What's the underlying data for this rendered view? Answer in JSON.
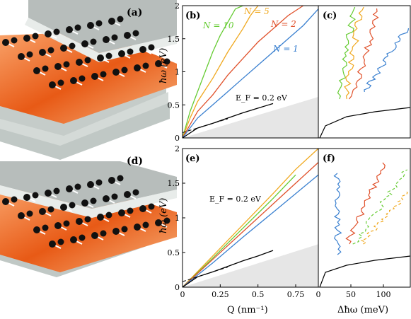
{
  "figure": {
    "panel_labels": [
      "(a)",
      "(b)",
      "(c)",
      "(d)",
      "(e)",
      "(f)"
    ],
    "y_axis_label": "ħω (eV)",
    "x_axis_label_left": "Q (nm⁻¹)",
    "x_axis_label_right": "Δħω (meV)",
    "ef_label_top": "E_F = 0.2 eV",
    "ef_label_bottom": "E_F = 0.2 eV",
    "n_labels": [
      "N = 10",
      "N = 5",
      "N = 2",
      "N = 1"
    ],
    "colors": {
      "N10": "#66cc33",
      "N5": "#f0a81e",
      "N2": "#e0502a",
      "N1": "#3a80d0",
      "graphene": "#000000",
      "light_cone": "#e6e6e6"
    }
  },
  "chart_data": [
    {
      "panel": "(b)",
      "type": "line",
      "xlim": [
        0,
        0.9
      ],
      "ylim": [
        0,
        2
      ],
      "yticks": [
        "0",
        "0.5",
        "1",
        "1.5",
        "2"
      ],
      "series": [
        {
          "name": "N = 10",
          "color": "#66cc33",
          "x": [
            0,
            0.05,
            0.1,
            0.15,
            0.2,
            0.25,
            0.3,
            0.35,
            0.4
          ],
          "y": [
            0,
            0.4,
            0.7,
            1.0,
            1.3,
            1.55,
            1.75,
            1.95,
            2.0
          ]
        },
        {
          "name": "N = 5",
          "color": "#f0a81e",
          "x": [
            0,
            0.05,
            0.1,
            0.2,
            0.3,
            0.4,
            0.45,
            0.5
          ],
          "y": [
            0,
            0.3,
            0.55,
            0.9,
            1.3,
            1.65,
            1.85,
            2.0
          ]
        },
        {
          "name": "N = 2",
          "color": "#e0502a",
          "x": [
            0,
            0.1,
            0.2,
            0.3,
            0.4,
            0.5,
            0.6,
            0.7,
            0.8
          ],
          "y": [
            0,
            0.4,
            0.65,
            0.95,
            1.2,
            1.45,
            1.65,
            1.85,
            2.0
          ]
        },
        {
          "name": "N = 1",
          "color": "#3a80d0",
          "x": [
            0,
            0.1,
            0.2,
            0.3,
            0.4,
            0.5,
            0.6,
            0.7,
            0.8,
            0.9
          ],
          "y": [
            0,
            0.3,
            0.5,
            0.7,
            0.9,
            1.1,
            1.3,
            1.5,
            1.7,
            1.95
          ]
        },
        {
          "name": "graphene",
          "color": "#000000",
          "x": [
            0,
            0.1,
            0.2,
            0.3,
            0.4,
            0.5,
            0.6
          ],
          "y": [
            0,
            0.15,
            0.22,
            0.3,
            0.38,
            0.45,
            0.52
          ]
        }
      ]
    },
    {
      "panel": "(c)",
      "type": "line",
      "ylim": [
        0,
        2
      ]
    },
    {
      "panel": "(e)",
      "type": "line",
      "xlim": [
        0,
        0.9
      ],
      "ylim": [
        0,
        2
      ],
      "xticks": [
        "0",
        "0.25",
        "0.5",
        "0.75"
      ],
      "yticks": [
        "0",
        "0.5",
        "1",
        "1.5",
        "2"
      ],
      "series": [
        {
          "name": "N = 5",
          "color": "#f0a81e",
          "x": [
            0,
            0.2,
            0.4,
            0.6,
            0.75,
            0.9
          ],
          "y": [
            0,
            0.45,
            0.9,
            1.35,
            1.7,
            2.0
          ]
        },
        {
          "name": "N = 10",
          "color": "#66cc33",
          "x": [
            0,
            0.2,
            0.4,
            0.6,
            0.75
          ],
          "y": [
            0,
            0.42,
            0.85,
            1.28,
            1.62
          ]
        },
        {
          "name": "N = 2",
          "color": "#e0502a",
          "x": [
            0,
            0.2,
            0.4,
            0.6,
            0.75,
            0.9
          ],
          "y": [
            0,
            0.4,
            0.8,
            1.2,
            1.5,
            1.8
          ]
        },
        {
          "name": "N = 1",
          "color": "#3a80d0",
          "x": [
            0,
            0.2,
            0.4,
            0.6,
            0.75,
            0.9
          ],
          "y": [
            0,
            0.35,
            0.72,
            1.08,
            1.35,
            1.62
          ]
        },
        {
          "name": "graphene",
          "color": "#000000",
          "x": [
            0,
            0.1,
            0.2,
            0.3,
            0.4,
            0.5,
            0.6
          ],
          "y": [
            0,
            0.15,
            0.22,
            0.3,
            0.38,
            0.45,
            0.53
          ]
        }
      ]
    },
    {
      "panel": "(f)",
      "type": "line",
      "ylim": [
        0,
        2
      ],
      "xticks": [
        "0",
        "50",
        "100"
      ]
    }
  ]
}
